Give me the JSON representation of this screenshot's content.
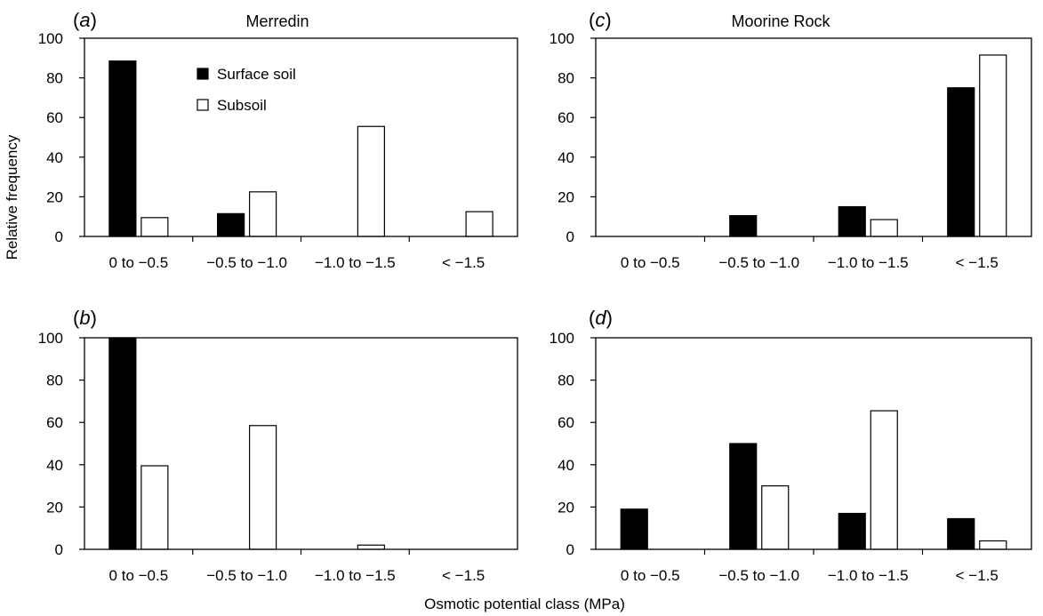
{
  "figure": {
    "ylabel": "Relative frequency",
    "xlabel": "Osmotic potential class (MPa)",
    "legend": [
      {
        "label": "Surface soil",
        "color": "#000000"
      },
      {
        "label": "Subsoil",
        "color": "#ffffff"
      }
    ]
  },
  "chart_data": [
    {
      "type": "bar",
      "panel": "(a)",
      "panel_letter": "a",
      "title": "Merredin",
      "categories": [
        "0 to −0.5",
        "−0.5 to −1.0",
        "−1.0 to −1.5",
        "< −1.5"
      ],
      "series": [
        {
          "name": "Surface soil",
          "color": "#000000",
          "values": [
            88.5,
            11.5,
            0,
            0
          ]
        },
        {
          "name": "Subsoil",
          "color": "#ffffff",
          "values": [
            9.5,
            22.5,
            55.5,
            12.5
          ]
        }
      ],
      "ylim": [
        0,
        100
      ],
      "yticks": [
        "0",
        "20",
        "40",
        "60",
        "80",
        "100"
      ],
      "legend_position": "top-center"
    },
    {
      "type": "bar",
      "panel": "(b)",
      "panel_letter": "b",
      "title": "",
      "categories": [
        "0 to −0.5",
        "−0.5 to −1.0",
        "−1.0 to −1.5",
        "< −1.5"
      ],
      "series": [
        {
          "name": "Surface soil",
          "color": "#000000",
          "values": [
            100,
            0,
            0,
            0
          ]
        },
        {
          "name": "Subsoil",
          "color": "#ffffff",
          "values": [
            39.5,
            58.5,
            2,
            0
          ]
        }
      ],
      "ylim": [
        0,
        100
      ],
      "yticks": [
        "0",
        "20",
        "40",
        "60",
        "80",
        "100"
      ]
    },
    {
      "type": "bar",
      "panel": "(c)",
      "panel_letter": "c",
      "title": "Moorine Rock",
      "categories": [
        "0 to −0.5",
        "−0.5 to −1.0",
        "−1.0 to −1.5",
        "< −1.5"
      ],
      "series": [
        {
          "name": "Surface soil",
          "color": "#000000",
          "values": [
            0,
            10.5,
            15,
            75
          ]
        },
        {
          "name": "Subsoil",
          "color": "#ffffff",
          "values": [
            0,
            0,
            8.5,
            91.5
          ]
        }
      ],
      "ylim": [
        0,
        100
      ],
      "yticks": [
        "0",
        "20",
        "40",
        "60",
        "80",
        "100"
      ]
    },
    {
      "type": "bar",
      "panel": "(d)",
      "panel_letter": "d",
      "title": "",
      "categories": [
        "0 to −0.5",
        "−0.5 to −1.0",
        "−1.0 to −1.5",
        "< −1.5"
      ],
      "series": [
        {
          "name": "Surface soil",
          "color": "#000000",
          "values": [
            19,
            50,
            17,
            14.5
          ]
        },
        {
          "name": "Subsoil",
          "color": "#ffffff",
          "values": [
            0,
            30,
            65.5,
            4
          ]
        }
      ],
      "ylim": [
        0,
        100
      ],
      "yticks": [
        "0",
        "20",
        "40",
        "60",
        "80",
        "100"
      ]
    }
  ]
}
